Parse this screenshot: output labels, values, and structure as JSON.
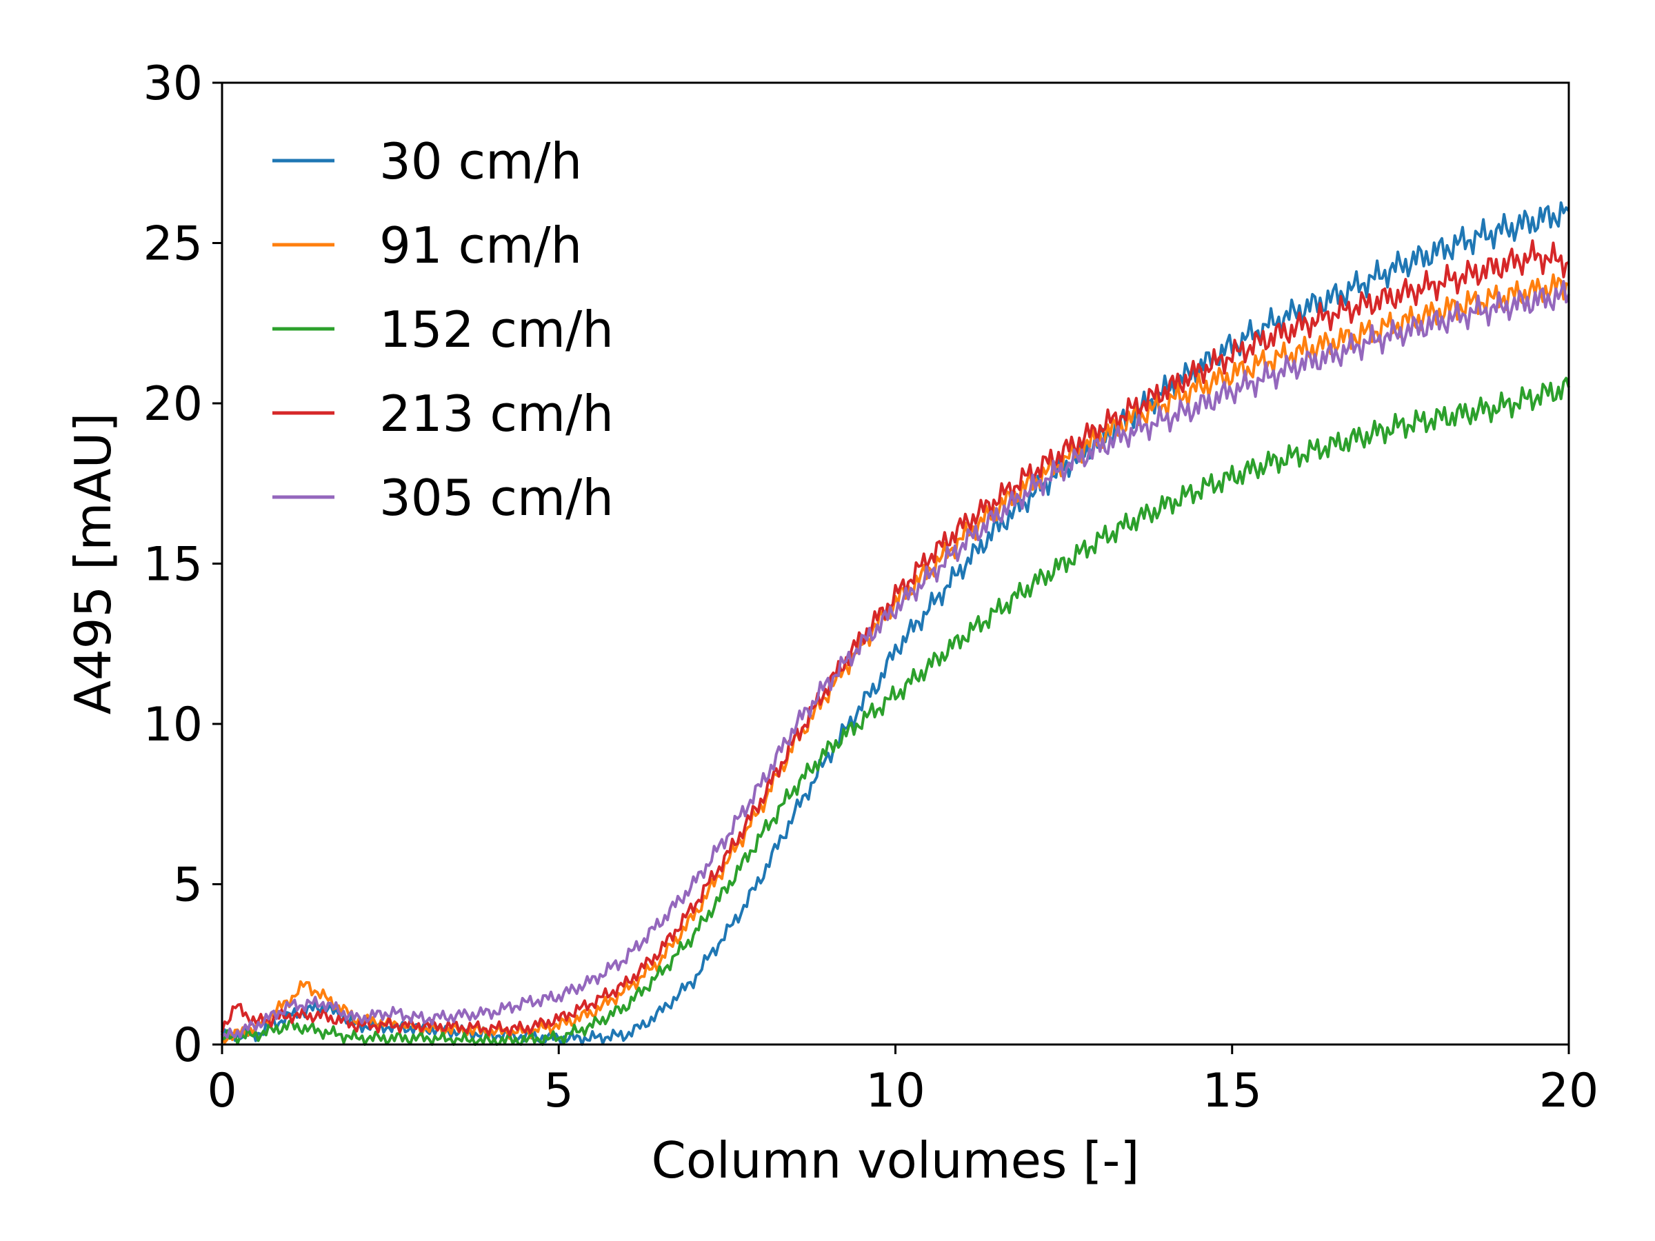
{
  "chart_data": {
    "type": "line",
    "title": "",
    "xlabel": "Column volumes [-]",
    "ylabel": "A495 [mAU]",
    "xlim": [
      0,
      20
    ],
    "ylim": [
      0,
      30
    ],
    "xticks": [
      0,
      5,
      10,
      15,
      20
    ],
    "yticks": [
      0,
      5,
      10,
      15,
      20,
      25,
      30
    ],
    "grid": false,
    "legend_position": "upper-left",
    "series": [
      {
        "name": "30 cm/h",
        "color": "#1f77b4",
        "x": [
          0,
          0.5,
          1,
          1.5,
          2,
          3,
          4,
          5,
          5.5,
          6,
          6.25,
          6.5,
          6.75,
          7,
          7.25,
          7.5,
          7.75,
          8,
          8.25,
          8.5,
          8.75,
          9,
          9.25,
          9.5,
          9.75,
          10,
          10.5,
          11,
          11.5,
          12,
          12.5,
          13,
          13.5,
          14,
          14.5,
          15,
          15.5,
          16,
          16.5,
          17,
          17.5,
          18,
          18.5,
          19,
          19.5,
          20
        ],
        "y": [
          0.3,
          0.3,
          0.9,
          1.2,
          0.6,
          0.5,
          0.3,
          0.2,
          0.2,
          0.3,
          0.6,
          1.0,
          1.5,
          2.0,
          2.8,
          3.5,
          4.3,
          5.2,
          6.2,
          7.2,
          8.1,
          9.0,
          9.8,
          10.6,
          11.3,
          12.3,
          13.6,
          14.9,
          16.1,
          17.1,
          18.0,
          18.8,
          19.6,
          20.4,
          21.1,
          21.8,
          22.4,
          22.9,
          23.3,
          23.8,
          24.3,
          24.7,
          25.1,
          25.4,
          25.7,
          26.0
        ]
      },
      {
        "name": "91 cm/h",
        "color": "#ff7f0e",
        "x": [
          0,
          0.5,
          1,
          1.25,
          1.5,
          2,
          3,
          4,
          4.5,
          5,
          5.5,
          6,
          6.5,
          7,
          7.5,
          8,
          8.5,
          9,
          9.5,
          10,
          10.5,
          11,
          11.5,
          12,
          12.5,
          13,
          13.5,
          14,
          14.5,
          15,
          15.5,
          16,
          16.5,
          17,
          17.5,
          18,
          18.5,
          19,
          19.5,
          20
        ],
        "y": [
          0.2,
          0.5,
          1.4,
          1.9,
          1.5,
          0.8,
          0.5,
          0.4,
          0.4,
          0.6,
          1.0,
          1.7,
          2.6,
          4.0,
          5.7,
          7.4,
          9.4,
          11.0,
          12.5,
          13.8,
          14.8,
          15.8,
          16.7,
          17.5,
          18.2,
          18.9,
          19.5,
          20.0,
          20.5,
          20.9,
          21.3,
          21.6,
          21.9,
          22.2,
          22.5,
          22.8,
          23.1,
          23.3,
          23.5,
          23.7
        ]
      },
      {
        "name": "152 cm/h",
        "color": "#2ca02c",
        "x": [
          0,
          0.5,
          1,
          1.5,
          2,
          3,
          4,
          5,
          5.5,
          6,
          6.5,
          7,
          7.5,
          8,
          8.5,
          9,
          9.5,
          10,
          10.5,
          11,
          11.5,
          12,
          12.5,
          13,
          13.5,
          14,
          14.5,
          15,
          15.5,
          16,
          16.5,
          17,
          17.5,
          18,
          18.5,
          19,
          19.5,
          20
        ],
        "y": [
          0.2,
          0.3,
          0.6,
          0.4,
          0.2,
          0.2,
          0.1,
          0.2,
          0.6,
          1.2,
          2.2,
          3.4,
          4.9,
          6.5,
          8.0,
          9.2,
          10.1,
          10.9,
          11.8,
          12.7,
          13.5,
          14.3,
          15.0,
          15.7,
          16.3,
          16.8,
          17.3,
          17.7,
          18.1,
          18.4,
          18.7,
          19.0,
          19.3,
          19.5,
          19.7,
          19.9,
          20.2,
          20.5
        ]
      },
      {
        "name": "213 cm/h",
        "color": "#d62728",
        "x": [
          0,
          0.2,
          0.5,
          1,
          1.5,
          2,
          3,
          4,
          4.5,
          5,
          5.5,
          6,
          6.5,
          7,
          7.5,
          8,
          8.5,
          9,
          9.5,
          10,
          10.5,
          11,
          11.5,
          12,
          12.5,
          13,
          13.5,
          14,
          14.5,
          15,
          15.5,
          16,
          16.5,
          17,
          17.5,
          18,
          18.5,
          19,
          19.5,
          20
        ],
        "y": [
          0.5,
          1.2,
          0.7,
          0.9,
          0.9,
          0.6,
          0.6,
          0.5,
          0.5,
          0.8,
          1.3,
          1.9,
          2.9,
          4.3,
          5.9,
          7.6,
          9.5,
          11.2,
          12.7,
          14.0,
          15.2,
          16.2,
          17.0,
          17.8,
          18.5,
          19.2,
          19.8,
          20.4,
          21.0,
          21.5,
          22.0,
          22.4,
          22.8,
          23.1,
          23.4,
          23.7,
          24.0,
          24.3,
          24.6,
          24.4
        ]
      },
      {
        "name": "305 cm/h",
        "color": "#9467bd",
        "x": [
          0,
          0.5,
          1,
          1.5,
          2,
          2.5,
          3,
          4,
          4.5,
          5,
          5.5,
          6,
          6.5,
          7,
          7.5,
          8,
          8.5,
          9,
          9.5,
          10,
          10.5,
          11,
          11.5,
          12,
          12.5,
          13,
          13.5,
          14,
          14.5,
          15,
          15.5,
          16,
          16.5,
          17,
          17.5,
          18,
          18.5,
          19,
          19.5,
          20
        ],
        "y": [
          0.2,
          0.6,
          1.2,
          1.3,
          0.8,
          1.0,
          0.8,
          1.0,
          1.3,
          1.5,
          2.0,
          2.7,
          3.8,
          5.0,
          6.5,
          8.1,
          9.9,
          11.3,
          12.5,
          13.6,
          14.6,
          15.6,
          16.5,
          17.3,
          18.0,
          18.6,
          19.1,
          19.5,
          19.9,
          20.4,
          20.8,
          21.2,
          21.5,
          21.9,
          22.2,
          22.5,
          22.8,
          23.0,
          23.2,
          23.4
        ]
      }
    ]
  }
}
